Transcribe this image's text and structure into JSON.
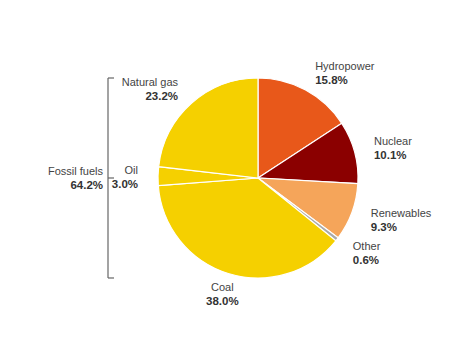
{
  "chart_data": {
    "type": "pie",
    "categories": [
      "Hydropower",
      "Nuclear",
      "Renewables",
      "Other",
      "Coal",
      "Oil",
      "Natural gas"
    ],
    "values": [
      15.8,
      10.1,
      9.3,
      0.6,
      38.0,
      3.0,
      23.2
    ],
    "value_labels": [
      "15.8%",
      "10.1%",
      "9.3%",
      "0.6%",
      "38.0%",
      "3.0%",
      "23.2%"
    ],
    "colors": [
      "#E8581A",
      "#8B0000",
      "#F5A55A",
      "#AAAAAA",
      "#F5D000",
      "#F5D000",
      "#F5D000"
    ],
    "data_labels": true,
    "annotations": [
      {
        "text": "Fossil fuels",
        "value": 64.2,
        "value_label": "64.2%",
        "categories": [
          "Coal",
          "Oil",
          "Natural gas"
        ]
      }
    ]
  }
}
